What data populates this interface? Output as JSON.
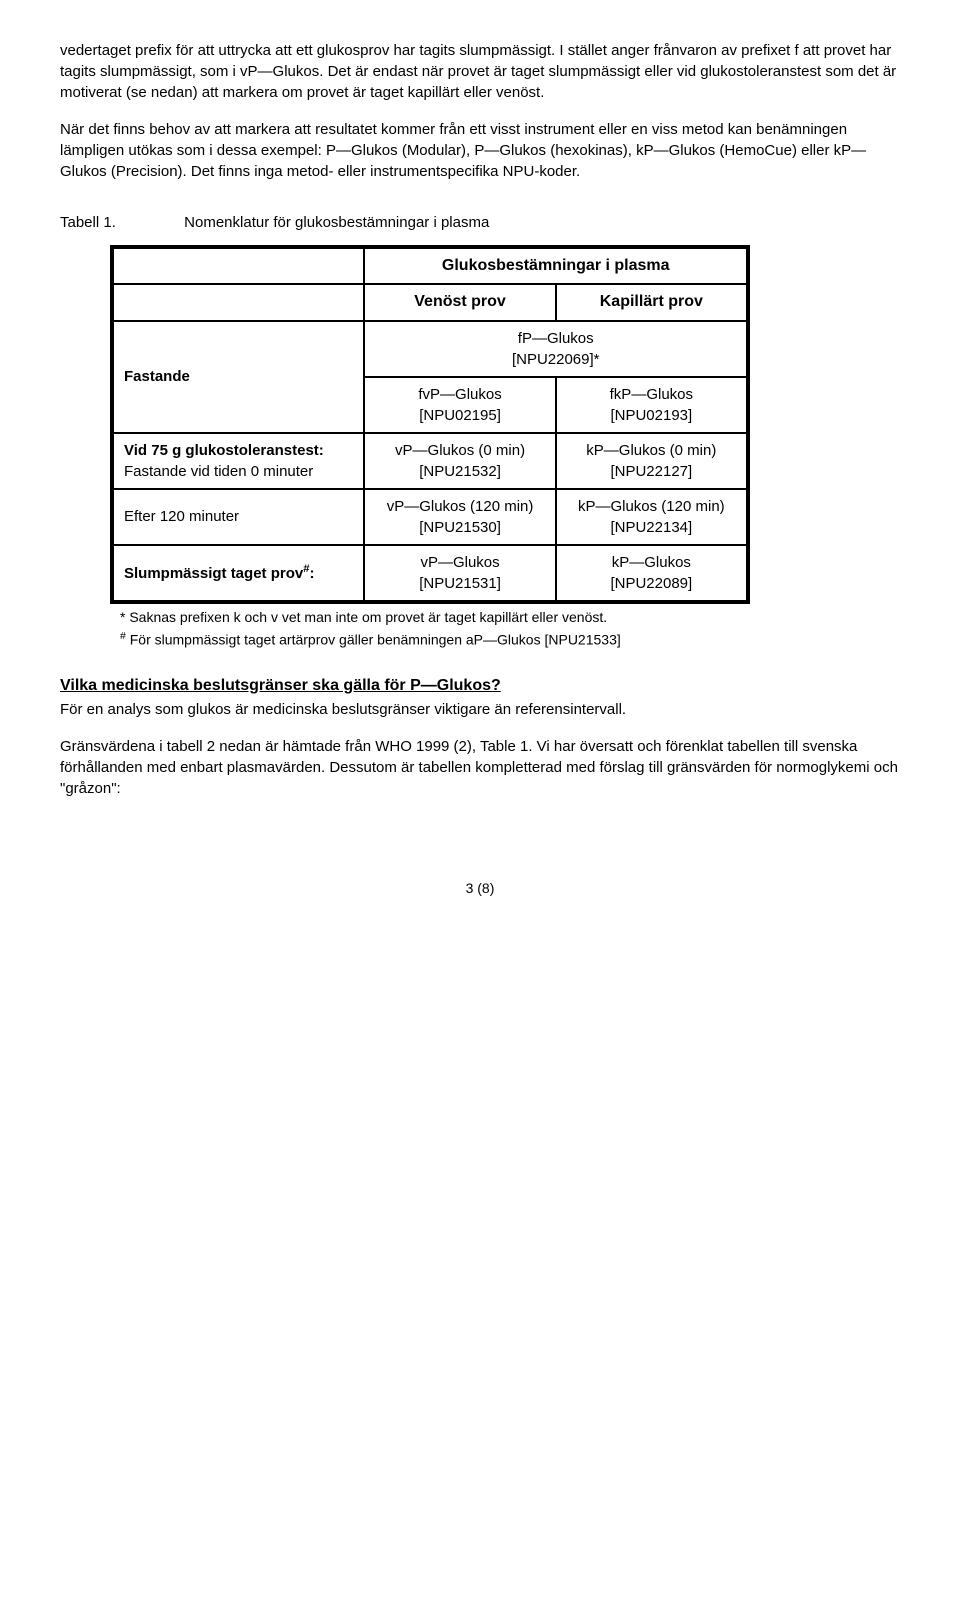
{
  "para1": "vedertaget prefix för att uttrycka att ett glukosprov har tagits slumpmässigt. I stället anger frånvaron av prefixet f att provet har tagits slumpmässigt, som i vP—Glukos. Det är endast när provet är taget slumpmässigt eller vid glukostoleranstest som det är motiverat (se nedan) att markera om provet är taget kapillärt eller venöst.",
  "para2": "När det finns behov av att markera att resultatet kommer från ett visst instrument eller en viss metod kan benämningen lämpligen utökas som i dessa exempel: P—Glukos (Modular), P—Glukos (hexokinas), kP—Glukos (HemoCue) eller kP—Glukos (Precision). Det finns inga metod- eller instrumentspecifika NPU-koder.",
  "tableLabel": "Tabell 1.",
  "tableTitle": "Nomenklatur för glukosbestämningar i plasma",
  "tableHeader": "Glukosbestämningar i plasma",
  "colVen": "Venöst prov",
  "colKap": "Kapillärt prov",
  "rows": {
    "fastande": {
      "label": "Fastande",
      "merged": "fP—Glukos\n[NPU22069]*",
      "ven": "fvP—Glukos\n[NPU02195]",
      "kap": "fkP—Glukos\n[NPU02193]"
    },
    "tolerans0": {
      "label": "Vid 75 g glukostoleranstest:",
      "sub": "Fastande vid tiden 0 minuter",
      "ven": "vP—Glukos (0 min)\n[NPU21532]",
      "kap": "kP—Glukos (0 min)\n[NPU22127]"
    },
    "tolerans120": {
      "label": "Efter 120 minuter",
      "ven": "vP—Glukos (120 min)\n[NPU21530]",
      "kap": "kP—Glukos (120 min)\n[NPU22134]"
    },
    "slump": {
      "label": "Slumpmässigt taget prov#:",
      "ven": "vP—Glukos\n[NPU21531]",
      "kap": "kP—Glukos\n[NPU22089]"
    }
  },
  "footnote1": "* Saknas prefixen k och v vet man inte om provet är taget kapillärt eller venöst.",
  "footnote2": "# För slumpmässigt taget artärprov gäller benämningen aP—Glukos [NPU21533]",
  "heading2": "Vilka medicinska beslutsgränser ska gälla för P—Glukos?",
  "para3": "För en analys som glukos är medicinska beslutsgränser viktigare än referensintervall.",
  "para4": "Gränsvärdena i tabell 2 nedan är hämtade från WHO 1999 (2), Table 1. Vi har översatt och förenklat tabellen till svenska förhållanden med enbart plasmavärden. Dessutom är tabellen kompletterad med förslag till gränsvärden för normoglykemi och \"gråzon\":",
  "pageNum": "3 (8)"
}
